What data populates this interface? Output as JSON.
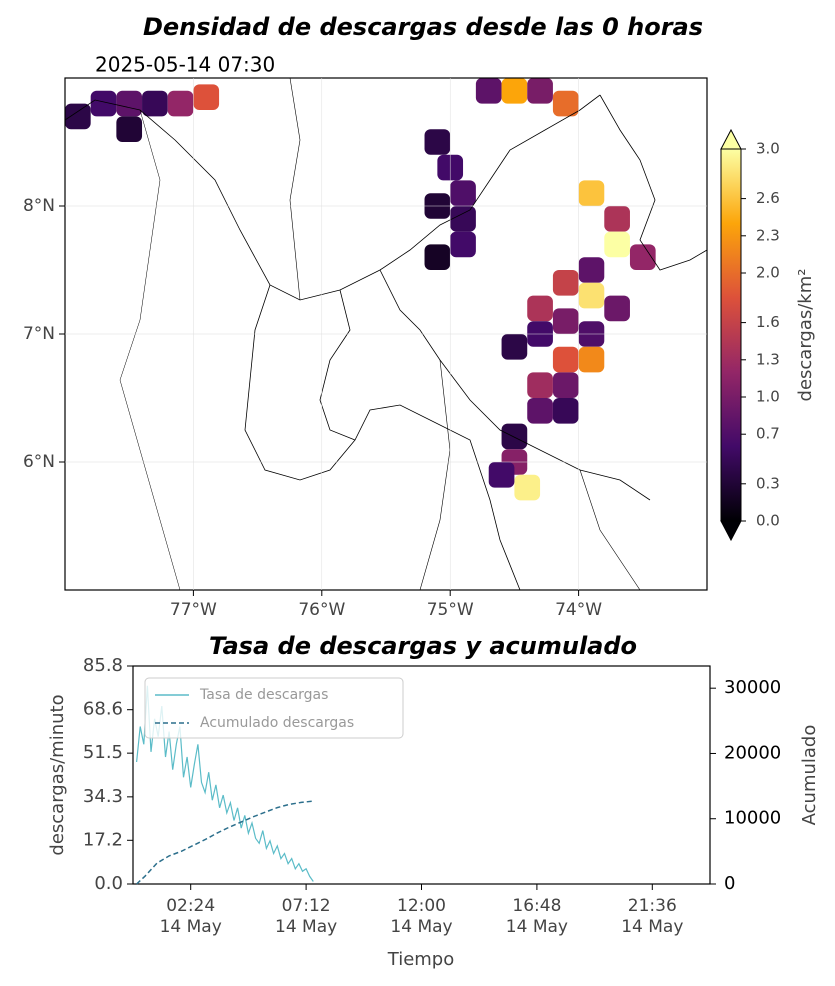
{
  "chart_data": [
    {
      "type": "heatmap",
      "title": "Densidad de descargas desde las 0 horas",
      "subtitle": "2025-05-14 07:30",
      "colorbar_label": "descargas/km²",
      "colormap": [
        "#000004",
        "#420a68",
        "#932667",
        "#dd513a",
        "#fca50a",
        "#fcffa4"
      ],
      "clim": [
        0,
        3.0
      ],
      "cticks": [
        {
          "value": 0,
          "label": "0.0"
        },
        0.3,
        0.7,
        {
          "value": 1,
          "label": "1.0"
        },
        1.3,
        1.6,
        {
          "value": 2,
          "label": "2.0"
        },
        2.3,
        2.6,
        {
          "value": 3,
          "label": "3.0"
        }
      ],
      "xlim": [
        -78,
        -73
      ],
      "ylim": [
        5,
        9
      ],
      "xticks": [
        {
          "value": -77,
          "label": "77°W"
        },
        {
          "value": -76,
          "label": "76°W"
        },
        {
          "value": -75,
          "label": "75°W"
        },
        {
          "value": -74,
          "label": "74°W"
        }
      ],
      "yticks": [
        {
          "value": 6,
          "label": "6°N"
        },
        {
          "value": 7,
          "label": "7°N"
        },
        {
          "value": 8,
          "label": "8°N"
        }
      ],
      "grid": true,
      "x": [
        -77.9,
        -77.7,
        -77.5,
        -77.3,
        -77.1,
        -76.9,
        -77.5,
        -74.7,
        -74.5,
        -74.3,
        -74.1,
        -75.1,
        -75.0,
        -74.9,
        -75.1,
        -74.9,
        -74.9,
        -75.1,
        -73.9,
        -73.7,
        -73.7,
        -73.5,
        -73.9,
        -74.1,
        -73.9,
        -73.7,
        -74.3,
        -74.1,
        -73.9,
        -74.3,
        -74.5,
        -74.1,
        -73.9,
        -74.3,
        -74.1,
        -74.3,
        -74.1,
        -74.5,
        -74.5,
        -74.4,
        -74.6
      ],
      "y": [
        8.7,
        8.8,
        8.8,
        8.8,
        8.8,
        8.85,
        8.6,
        8.9,
        8.9,
        8.9,
        8.8,
        8.5,
        8.3,
        8.1,
        8.0,
        7.9,
        7.7,
        7.6,
        8.1,
        7.9,
        7.7,
        7.6,
        7.5,
        7.4,
        7.3,
        7.2,
        7.2,
        7.1,
        7.0,
        7.0,
        6.9,
        6.8,
        6.8,
        6.6,
        6.6,
        6.4,
        6.4,
        6.2,
        6.0,
        5.8,
        5.9
      ],
      "values": [
        0.4,
        0.6,
        0.8,
        0.5,
        1.2,
        1.8,
        0.3,
        0.8,
        2.4,
        1.0,
        2.0,
        0.4,
        0.6,
        0.7,
        0.3,
        0.5,
        0.6,
        0.2,
        2.6,
        1.4,
        3.0,
        1.2,
        0.8,
        1.6,
        2.8,
        0.9,
        1.4,
        1.0,
        0.7,
        0.6,
        0.4,
        1.8,
        2.2,
        1.3,
        0.9,
        0.8,
        0.5,
        0.4,
        1.1,
        2.9,
        0.6
      ]
    },
    {
      "type": "line",
      "title": "Tasa de descargas y acumulado",
      "xlabel": "Tiempo",
      "ylabel": "descargas/minuto",
      "y2label": "Acumulado",
      "xlim": [
        0,
        24
      ],
      "ylim": [
        0,
        85.8
      ],
      "y2lim": [
        0,
        33400
      ],
      "xticks": [
        {
          "value": 2.4,
          "label": "02:24\n14 May"
        },
        {
          "value": 7.2,
          "label": "07:12\n14 May"
        },
        {
          "value": 12,
          "label": "12:00\n14 May"
        },
        {
          "value": 16.8,
          "label": "16:48\n14 May"
        },
        {
          "value": 21.6,
          "label": "21:36\n14 May"
        }
      ],
      "yticks": [
        {
          "value": 0,
          "label": "0.0"
        },
        17.2,
        34.3,
        51.5,
        68.6,
        85.8
      ],
      "y2ticks": [
        0,
        10000,
        20000,
        30000
      ],
      "legend": "upper left",
      "series": [
        {
          "name": "Tasa de descargas",
          "color": "#5bbcc8",
          "style": "solid",
          "x": [
            0.15,
            0.3,
            0.45,
            0.6,
            0.75,
            0.9,
            1.05,
            1.2,
            1.35,
            1.5,
            1.65,
            1.8,
            1.95,
            2.1,
            2.25,
            2.4,
            2.55,
            2.7,
            2.85,
            3.0,
            3.15,
            3.3,
            3.45,
            3.6,
            3.75,
            3.9,
            4.05,
            4.2,
            4.35,
            4.5,
            4.65,
            4.8,
            4.95,
            5.1,
            5.25,
            5.4,
            5.55,
            5.7,
            5.85,
            6.0,
            6.15,
            6.3,
            6.45,
            6.6,
            6.75,
            6.9,
            7.05,
            7.2,
            7.35,
            7.5
          ],
          "values": [
            48,
            62,
            55,
            78,
            52,
            65,
            58,
            70,
            50,
            60,
            45,
            55,
            62,
            42,
            50,
            38,
            47,
            55,
            40,
            36,
            44,
            33,
            39,
            30,
            35,
            28,
            32,
            25,
            30,
            22,
            27,
            20,
            24,
            18,
            16,
            21,
            14,
            17,
            12,
            15,
            10,
            12,
            8,
            10,
            6,
            8,
            5,
            6,
            3,
            1
          ]
        },
        {
          "name": "Acumulado descargas",
          "color": "#2c6f8c",
          "style": "dashed",
          "axis": "y2",
          "x": [
            0.15,
            0.5,
            1,
            1.5,
            2,
            2.5,
            3,
            3.5,
            4,
            4.5,
            5,
            5.5,
            6,
            6.5,
            7,
            7.5
          ],
          "values": [
            0,
            1200,
            3200,
            4300,
            5000,
            5900,
            6800,
            7800,
            8700,
            9500,
            10300,
            11000,
            11700,
            12200,
            12500,
            12700
          ]
        }
      ]
    }
  ]
}
